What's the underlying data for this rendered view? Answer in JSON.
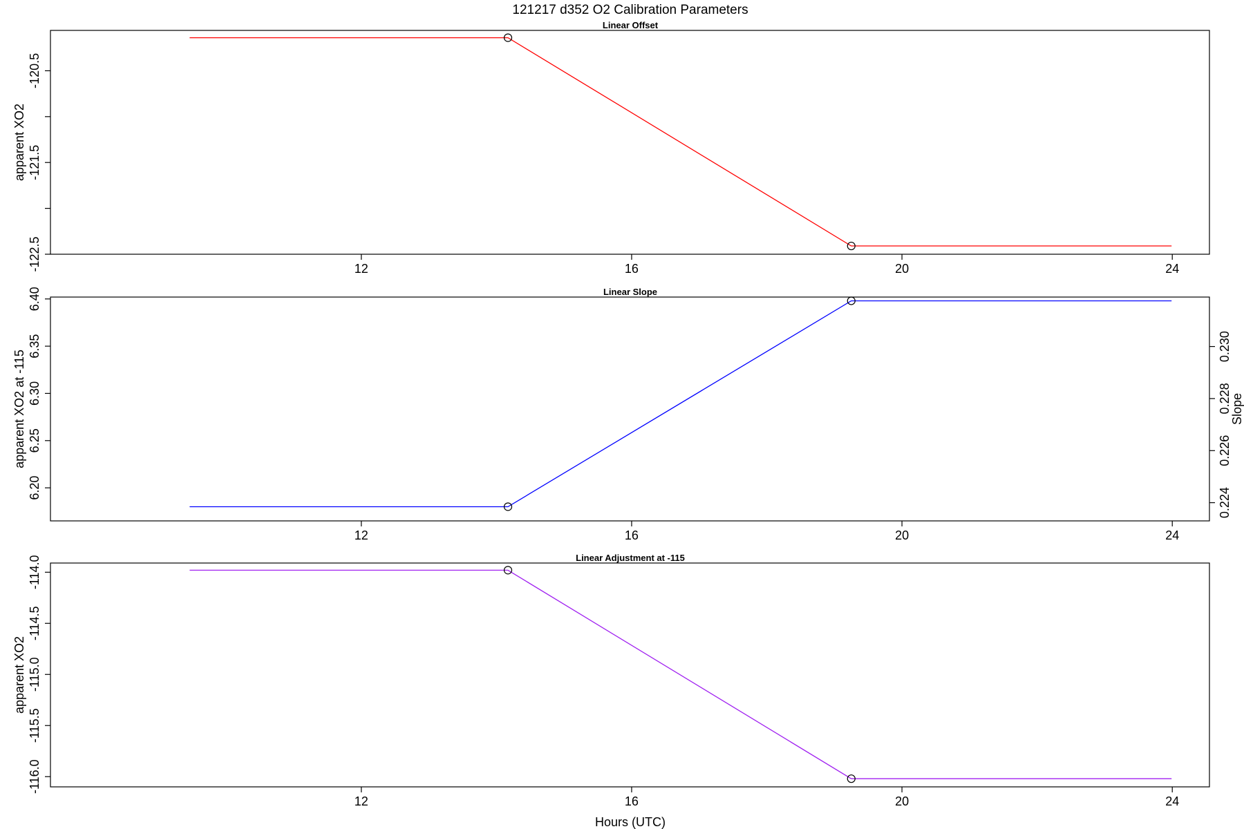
{
  "title": "121217   d352   O2 Calibration Parameters",
  "xlabel": "Hours (UTC)",
  "colors": {
    "offset": "#ff0000",
    "slope": "#0000ff",
    "adjustment": "#a020f0"
  },
  "chart_data": [
    {
      "type": "line",
      "title": "Linear Offset",
      "ylabel": "apparent XO2",
      "x": [
        9.46,
        14.17,
        19.25,
        23.99
      ],
      "y": [
        -120.14,
        -120.14,
        -122.41,
        -122.41
      ],
      "markers_x": [
        14.17,
        19.25
      ],
      "markers_y": [
        -120.14,
        -122.41
      ],
      "xlim": [
        7.4,
        24.55
      ],
      "xticks": [
        12,
        16,
        20,
        24
      ],
      "ylim": [
        -122.5,
        -120.06
      ],
      "yticks": [
        -120.5,
        -121,
        -121.5,
        -122,
        -122.5
      ],
      "ytick_labels": [
        "-120.5",
        "",
        "-121.5",
        "",
        "-122.5"
      ],
      "color_key": "offset"
    },
    {
      "type": "line",
      "title": "Linear Slope",
      "ylabel": "apparent XO2 at -115",
      "y2label": "Slope",
      "x": [
        9.46,
        14.17,
        19.25,
        23.99
      ],
      "y": [
        6.18,
        6.18,
        6.398,
        6.398
      ],
      "markers_x": [
        14.17,
        19.25
      ],
      "markers_y": [
        6.18,
        6.398
      ],
      "xlim": [
        7.4,
        24.55
      ],
      "xticks": [
        12,
        16,
        20,
        24
      ],
      "ylim": [
        6.165,
        6.402
      ],
      "yticks": [
        6.2,
        6.25,
        6.3,
        6.35,
        6.4
      ],
      "ytick_labels": [
        "6.20",
        "6.25",
        "6.30",
        "6.35",
        "6.40"
      ],
      "y2ticks": [
        0.224,
        0.226,
        0.228,
        0.23
      ],
      "y2tick_labels": [
        "0.224",
        "0.226",
        "0.228",
        "0.230"
      ],
      "y2lim": [
        0.2233,
        0.2319
      ],
      "color_key": "slope"
    },
    {
      "type": "line",
      "title": "Linear Adjustment at -115",
      "ylabel": "apparent XO2",
      "x": [
        9.46,
        14.17,
        19.25,
        23.99
      ],
      "y": [
        -113.98,
        -113.98,
        -116.02,
        -116.02
      ],
      "markers_x": [
        14.17,
        19.25
      ],
      "markers_y": [
        -113.98,
        -116.02
      ],
      "xlim": [
        7.4,
        24.55
      ],
      "xticks": [
        12,
        16,
        20,
        24
      ],
      "ylim": [
        -116.1,
        -113.91
      ],
      "yticks": [
        -114,
        -114.5,
        -115,
        -115.5,
        -116
      ],
      "ytick_labels": [
        "-114.0",
        "-114.5",
        "-115.0",
        "-115.5",
        "-116.0"
      ],
      "color_key": "adjustment"
    }
  ]
}
